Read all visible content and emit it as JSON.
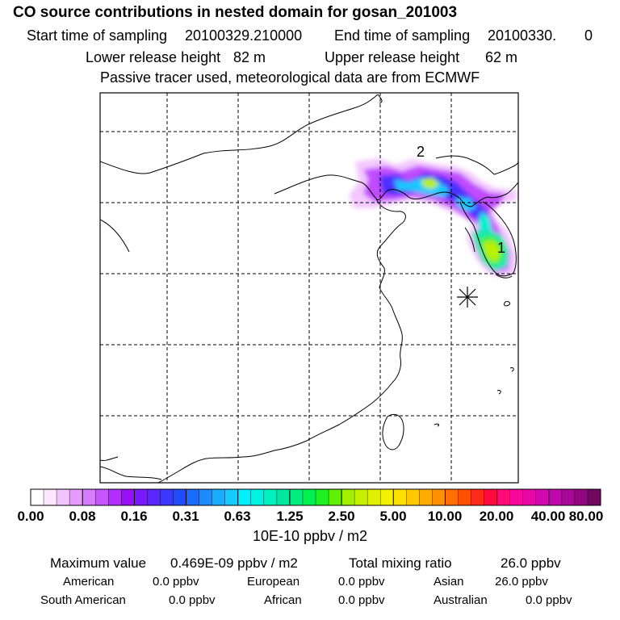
{
  "header": {
    "title": "CO  source contributions in nested domain for gosan_201003",
    "start_label": "Start time of sampling",
    "start_value": "20100329.210000",
    "end_label": "End time of sampling",
    "end_value": "20100330.",
    "end_extra": "0",
    "lower_label": "Lower release height",
    "lower_value": "82 m",
    "upper_label": "Upper release height",
    "upper_value": "62 m",
    "tracer_note": "Passive tracer used, meteorological data are from ECMWF"
  },
  "map": {
    "source_markers": [
      "1",
      "2"
    ],
    "receptor_symbol": "asterisk",
    "frame_color": "#000000"
  },
  "colorbar": {
    "tick_labels": [
      "0.00",
      "0.08",
      "0.16",
      "0.31",
      "0.63",
      "1.25",
      "2.50",
      "5.00",
      "10.00",
      "20.00",
      "40.00",
      "80.00"
    ],
    "units": "10E-10 ppbv / m2",
    "colors": [
      "#ffffff",
      "#fbe8ff",
      "#f2c4ff",
      "#e69cff",
      "#d77cff",
      "#c655ff",
      "#b12eff",
      "#9a10f5",
      "#7a18ff",
      "#5a28ff",
      "#3b38ff",
      "#1f4cff",
      "#1a6cff",
      "#1a8cff",
      "#1aacff",
      "#14ccff",
      "#00f0ff",
      "#00f2e0",
      "#00f0c0",
      "#00e8a0",
      "#00ec80",
      "#00f050",
      "#20f020",
      "#60f000",
      "#a0f000",
      "#c4f000",
      "#e0f000",
      "#f4f000",
      "#ffe000",
      "#ffc800",
      "#ffac00",
      "#ff9000",
      "#ff7000",
      "#ff5000",
      "#ff2a1a",
      "#ff0a3c",
      "#ff0a78",
      "#f8089a",
      "#e808a8",
      "#d408b0",
      "#c008aa",
      "#a80898",
      "#900880",
      "#700860"
    ]
  },
  "footer": {
    "max_label": "Maximum value",
    "max_value": "0.469E-09 ppbv / m2",
    "total_label": "Total mixing ratio",
    "total_value": "26.0 ppbv",
    "regions": [
      {
        "name": "American",
        "value": "0.0 ppbv"
      },
      {
        "name": "European",
        "value": "0.0 ppbv"
      },
      {
        "name": "Asian",
        "value": "26.0 ppbv"
      },
      {
        "name": "South American",
        "value": "0.0 ppbv"
      },
      {
        "name": "African",
        "value": "0.0 ppbv"
      },
      {
        "name": "Australian",
        "value": "0.0 ppbv"
      }
    ]
  }
}
